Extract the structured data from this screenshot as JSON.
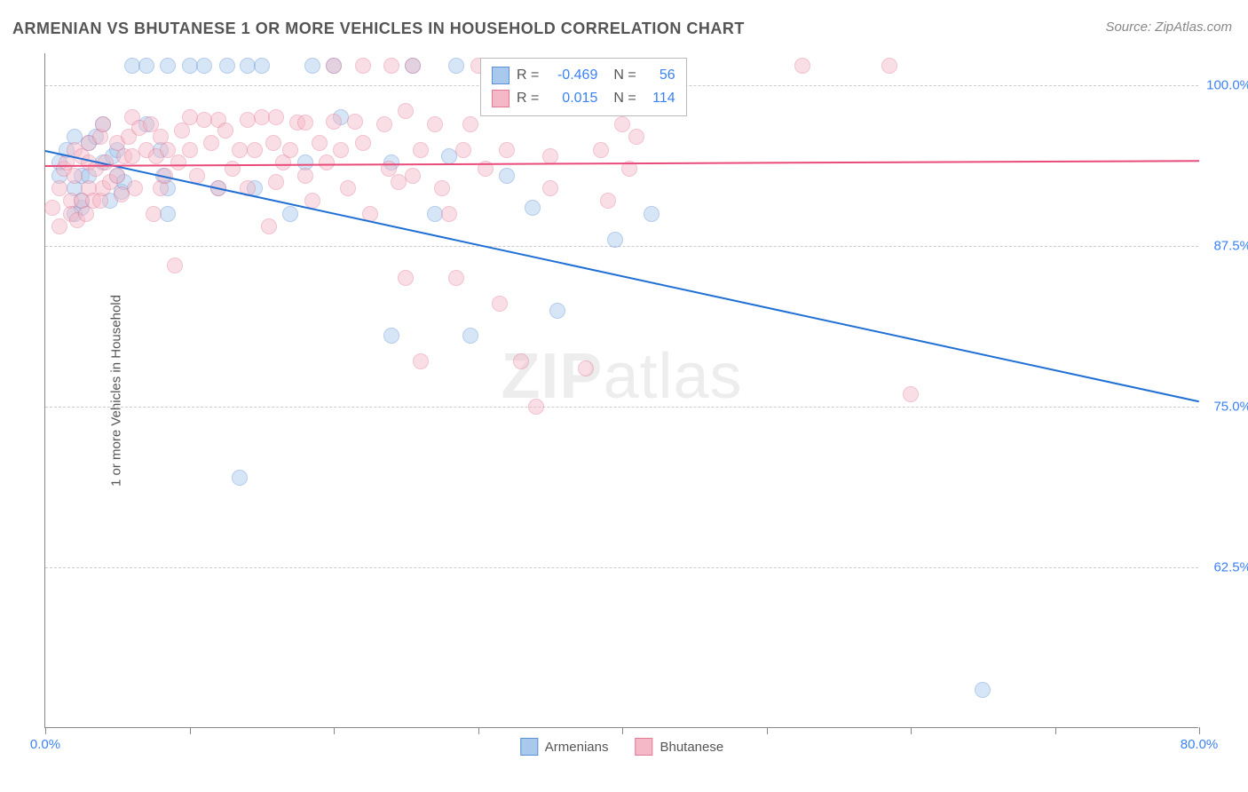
{
  "title": "ARMENIAN VS BHUTANESE 1 OR MORE VEHICLES IN HOUSEHOLD CORRELATION CHART",
  "source": "Source: ZipAtlas.com",
  "yaxis_title": "1 or more Vehicles in Household",
  "watermark_bold": "ZIP",
  "watermark_rest": "atlas",
  "chart": {
    "type": "scatter",
    "background_color": "#ffffff",
    "grid_color": "#cccccc",
    "xlim": [
      0,
      80
    ],
    "ylim": [
      50,
      102.5
    ],
    "xticks": [
      0,
      10,
      20,
      30,
      40,
      50,
      60,
      70,
      80
    ],
    "xtick_labels": {
      "0": "0.0%",
      "80": "80.0%"
    },
    "yticks": [
      62.5,
      75.0,
      87.5,
      100.0
    ],
    "ytick_labels": [
      "62.5%",
      "75.0%",
      "87.5%",
      "100.0%"
    ],
    "point_radius": 9,
    "point_opacity": 0.45,
    "series": [
      {
        "name": "Armenians",
        "color_fill": "#a8c8ec",
        "color_stroke": "#5b8fd6",
        "r_label": "R =",
        "r_value": "-0.469",
        "n_label": "N =",
        "n_value": "56",
        "trend": {
          "x1": 0,
          "y1": 95.0,
          "x2": 80,
          "y2": 75.5,
          "color": "#1f6fd4",
          "width": 2
        },
        "points": [
          [
            1,
            94
          ],
          [
            1,
            93
          ],
          [
            1.5,
            95
          ],
          [
            2,
            92
          ],
          [
            2,
            90
          ],
          [
            2,
            96
          ],
          [
            2.5,
            93
          ],
          [
            2.5,
            90.5
          ],
          [
            2.5,
            91
          ],
          [
            3,
            95.5
          ],
          [
            3,
            93
          ],
          [
            3.5,
            96
          ],
          [
            4,
            97
          ],
          [
            4,
            94
          ],
          [
            4.5,
            91
          ],
          [
            4.7,
            94.5
          ],
          [
            5,
            93
          ],
          [
            5,
            95
          ],
          [
            5.3,
            91.7
          ],
          [
            5.5,
            92.5
          ],
          [
            6,
            101.5
          ],
          [
            7,
            97
          ],
          [
            7,
            101.5
          ],
          [
            8,
            95
          ],
          [
            8.2,
            93
          ],
          [
            8.5,
            90
          ],
          [
            8.5,
            101.5
          ],
          [
            8.5,
            92
          ],
          [
            10,
            101.5
          ],
          [
            11,
            101.5
          ],
          [
            12,
            92
          ],
          [
            12.6,
            101.5
          ],
          [
            13.5,
            69.5
          ],
          [
            14,
            101.5
          ],
          [
            14.5,
            92
          ],
          [
            15,
            101.5
          ],
          [
            17,
            90
          ],
          [
            18,
            94
          ],
          [
            18.5,
            101.5
          ],
          [
            20,
            101.5
          ],
          [
            20.5,
            97.5
          ],
          [
            24,
            94
          ],
          [
            24,
            80.5
          ],
          [
            25.5,
            101.5
          ],
          [
            27,
            90
          ],
          [
            28,
            94.5
          ],
          [
            28.5,
            101.5
          ],
          [
            29.5,
            80.5
          ],
          [
            32,
            93
          ],
          [
            33,
            101.5
          ],
          [
            33.8,
            90.5
          ],
          [
            35.5,
            82.5
          ],
          [
            39.5,
            88
          ],
          [
            42,
            90
          ],
          [
            65,
            53
          ]
        ]
      },
      {
        "name": "Bhutanese",
        "color_fill": "#f4b8c6",
        "color_stroke": "#e27a96",
        "r_label": "R =",
        "r_value": "0.015",
        "n_label": "N =",
        "n_value": "114",
        "trend": {
          "x1": 0,
          "y1": 93.8,
          "x2": 80,
          "y2": 94.2,
          "color": "#e94b7a",
          "width": 2
        },
        "points": [
          [
            0.5,
            90.5
          ],
          [
            1,
            89
          ],
          [
            1,
            92
          ],
          [
            1.3,
            93.5
          ],
          [
            1.5,
            94
          ],
          [
            1.8,
            91
          ],
          [
            1.8,
            90
          ],
          [
            2,
            93
          ],
          [
            2,
            95
          ],
          [
            2.2,
            89.5
          ],
          [
            2.5,
            91
          ],
          [
            2.5,
            94.5
          ],
          [
            2.8,
            90
          ],
          [
            3,
            92
          ],
          [
            3,
            95.5
          ],
          [
            3,
            94
          ],
          [
            3.3,
            91
          ],
          [
            3.5,
            93.5
          ],
          [
            3.8,
            96
          ],
          [
            3.8,
            91
          ],
          [
            4,
            92
          ],
          [
            4,
            97
          ],
          [
            4.2,
            94
          ],
          [
            4.5,
            92.5
          ],
          [
            5,
            95.5
          ],
          [
            5,
            93
          ],
          [
            5.3,
            91.5
          ],
          [
            5.5,
            94.5
          ],
          [
            5.8,
            96
          ],
          [
            6,
            94.5
          ],
          [
            6,
            97.5
          ],
          [
            6.2,
            92
          ],
          [
            6.5,
            96.7
          ],
          [
            7,
            95
          ],
          [
            7.3,
            97
          ],
          [
            7.5,
            90
          ],
          [
            7.7,
            94.5
          ],
          [
            8,
            92
          ],
          [
            8,
            96
          ],
          [
            8.3,
            93
          ],
          [
            8.5,
            95
          ],
          [
            9,
            86
          ],
          [
            9.2,
            94
          ],
          [
            9.5,
            96.5
          ],
          [
            10,
            97.5
          ],
          [
            10,
            95
          ],
          [
            10.5,
            93
          ],
          [
            11,
            97.3
          ],
          [
            11.5,
            95.5
          ],
          [
            12,
            92
          ],
          [
            12,
            97.3
          ],
          [
            12.5,
            96.5
          ],
          [
            13,
            93.5
          ],
          [
            13.5,
            95
          ],
          [
            14,
            92
          ],
          [
            14,
            97.3
          ],
          [
            14.5,
            95
          ],
          [
            15,
            97.5
          ],
          [
            15.5,
            89
          ],
          [
            15.8,
            95.5
          ],
          [
            16,
            92.5
          ],
          [
            16,
            97.5
          ],
          [
            16.5,
            94
          ],
          [
            17,
            95
          ],
          [
            17.5,
            97.1
          ],
          [
            18,
            93
          ],
          [
            18,
            97.1
          ],
          [
            18.5,
            91
          ],
          [
            19,
            95.5
          ],
          [
            19.5,
            94
          ],
          [
            20,
            97.2
          ],
          [
            20,
            101.5
          ],
          [
            20.5,
            95
          ],
          [
            21,
            92
          ],
          [
            21.5,
            97.2
          ],
          [
            22,
            95.5
          ],
          [
            22,
            101.5
          ],
          [
            22.5,
            90
          ],
          [
            23.5,
            97
          ],
          [
            23.8,
            93.5
          ],
          [
            24,
            101.5
          ],
          [
            24.5,
            92.5
          ],
          [
            25,
            98
          ],
          [
            25,
            85
          ],
          [
            25.5,
            93
          ],
          [
            25.5,
            101.5
          ],
          [
            26,
            95
          ],
          [
            26,
            78.5
          ],
          [
            27,
            97
          ],
          [
            27.5,
            92
          ],
          [
            28,
            90
          ],
          [
            28.5,
            85
          ],
          [
            29,
            95
          ],
          [
            29.5,
            97
          ],
          [
            30,
            101.5
          ],
          [
            30.5,
            93.5
          ],
          [
            31.5,
            83
          ],
          [
            32,
            95
          ],
          [
            33,
            78.5
          ],
          [
            33.5,
            101.5
          ],
          [
            34,
            75
          ],
          [
            35,
            92
          ],
          [
            35,
            94.5
          ],
          [
            37,
            101.5
          ],
          [
            37.5,
            78
          ],
          [
            38.5,
            95
          ],
          [
            39,
            91
          ],
          [
            40,
            97
          ],
          [
            40.5,
            93.5
          ],
          [
            41,
            96
          ],
          [
            52.5,
            101.5
          ],
          [
            58.5,
            101.5
          ],
          [
            60,
            76
          ]
        ]
      }
    ]
  },
  "bottom_legend": [
    {
      "label": "Armenians",
      "fill": "#a8c8ec",
      "stroke": "#5b8fd6"
    },
    {
      "label": "Bhutanese",
      "fill": "#f4b8c6",
      "stroke": "#e27a96"
    }
  ]
}
